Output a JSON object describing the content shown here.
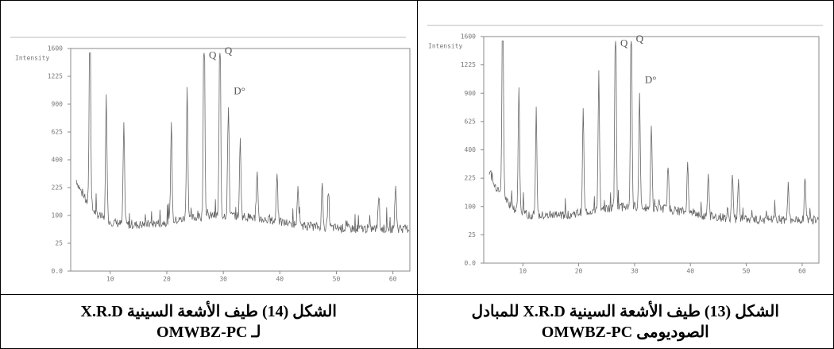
{
  "figures": [
    {
      "caption": [
        "الشكل (14) طيف الأشعة السينية X.R.D",
        "لـ OMWBZ-PC"
      ],
      "y_axis_title": "Intensity",
      "yticks": [
        "0.0",
        "25",
        "100",
        "225",
        "400",
        "625",
        "900",
        "1225",
        "1600"
      ],
      "xticks": [
        "10",
        "20",
        "30",
        "40",
        "50",
        "60"
      ],
      "annotations": [
        "Q",
        "Q",
        "D°"
      ]
    },
    {
      "caption": [
        "الشكل (13) طيف الأشعة السينية X.R.D للمبادل",
        "الصوديومى OMWBZ-PC"
      ],
      "y_axis_title": "Intensity",
      "yticks": [
        "0.0",
        "25",
        "100",
        "225",
        "400",
        "625",
        "900",
        "1225",
        "1600"
      ],
      "xticks": [
        "10",
        "20",
        "30",
        "40",
        "50",
        "60"
      ],
      "annotations": [
        "Q",
        "Q",
        "D°"
      ]
    }
  ]
}
